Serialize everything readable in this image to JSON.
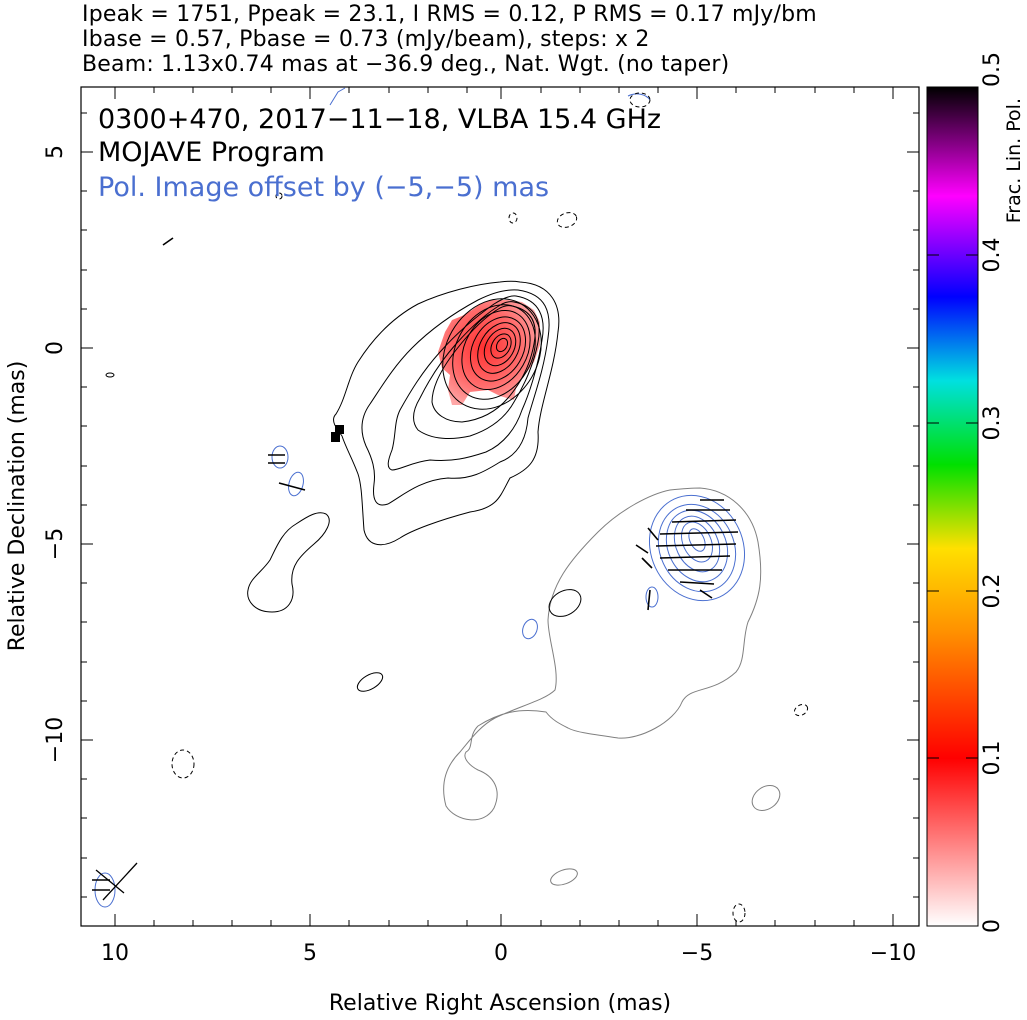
{
  "header": {
    "line1": "Ipeak = 1751, Ppeak = 23.1, I RMS = 0.12, P RMS = 0.17 mJy/bm",
    "line2": "Ibase = 0.57, Pbase = 0.73 (mJy/beam), steps: x 2",
    "line3": "Beam: 1.13x0.74 mas at −36.9 deg., Nat. Wgt. (no taper)"
  },
  "annotations": {
    "source": "0300+470, 2017−11−18, VLBA 15.4 GHz",
    "program": "MOJAVE Program",
    "offset": "Pol. Image offset by (−5,−5) mas"
  },
  "colors": {
    "contour_total": "#000000",
    "contour_offset": "#808080",
    "contour_pol": "#4a6fd0",
    "pol_ticks": "#000000",
    "offset_text": "#4a6fd0"
  },
  "chart_data": {
    "type": "heatmap",
    "xlabel": "Relative Right Ascension (mas)",
    "ylabel": "Relative Declination (mas)",
    "xlim": [
      10.9,
      -10.5
    ],
    "ylim": [
      -14.5,
      6.7
    ],
    "x_ticks": [
      10,
      5,
      0,
      -5,
      -10
    ],
    "x_tick_labels": [
      "10",
      "5",
      "0",
      "−5",
      "−10"
    ],
    "y_ticks": [
      5,
      0,
      -5,
      -10
    ],
    "y_tick_labels": [
      "5",
      "0",
      "−5",
      "−10"
    ],
    "colorbar": {
      "label": "Frac. Lin. Pol.",
      "range": [
        0,
        0.5
      ],
      "ticks": [
        0,
        0.1,
        0.2,
        0.3,
        0.4,
        0.5
      ],
      "tick_labels": [
        "0",
        "0.1",
        "0.2",
        "0.3",
        "0.4",
        "0.5"
      ],
      "stops": [
        "#ffffff",
        "#ff0000",
        "#ff8000",
        "#ffe000",
        "#00e000",
        "#00e0e0",
        "#0000ff",
        "#ff00ff",
        "#000000"
      ]
    },
    "core_peak": {
      "ra": -0.1,
      "dec": 0.1
    },
    "frac_pol_patch": {
      "ra_min": -1.0,
      "ra_max": 1.6,
      "dec_min": -1.5,
      "dec_max": 1.2,
      "value": 0.05
    },
    "high_pol_pixels": [
      {
        "ra": 4.15,
        "dec": -2.0
      },
      {
        "ra": 4.25,
        "dec": -2.25
      }
    ],
    "beam": {
      "ra": 10.0,
      "dec": -13.8,
      "major": 1.13,
      "minor": 0.74,
      "pa_deg": -36.9
    }
  }
}
